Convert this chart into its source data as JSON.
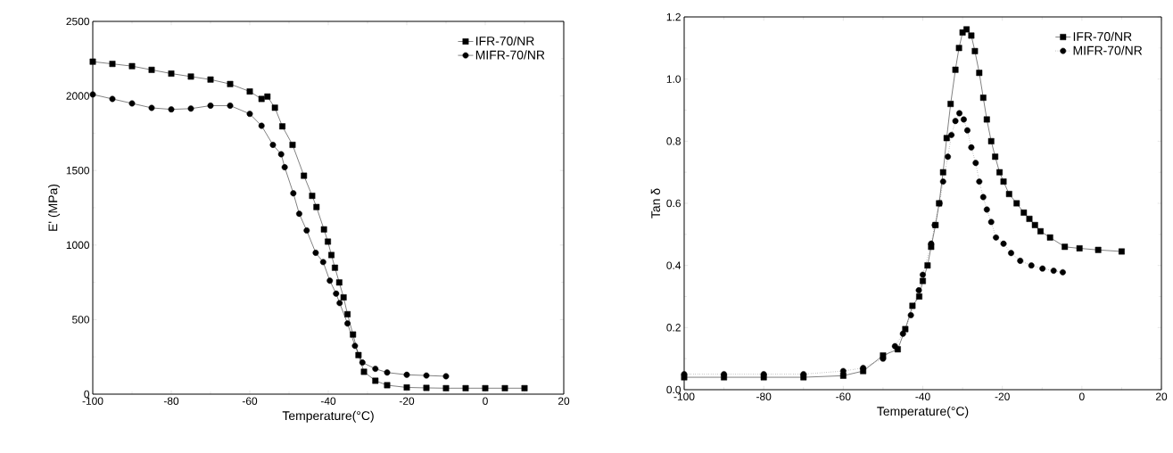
{
  "chart_data": [
    {
      "type": "line",
      "xlabel": "Temperature(°C)",
      "ylabel": "E' (MPa)",
      "xlim": [
        -100,
        20
      ],
      "ylim": [
        0,
        2500
      ],
      "xticks": [
        -100,
        -80,
        -60,
        -40,
        -20,
        0,
        20
      ],
      "yticks": [
        0,
        500,
        1000,
        1500,
        2000,
        2500
      ],
      "legend": "top right",
      "grid": false,
      "series": [
        {
          "name": "IFR-70/NR",
          "color": "#000000",
          "marker": "square",
          "line_style": "solid",
          "x": [
            -100,
            -95,
            -90,
            -85,
            -80,
            -75,
            -70,
            -65,
            -60,
            -57,
            -55.5,
            -53.6,
            -51.7,
            -49.1,
            -46.2,
            -44.1,
            -43,
            -41.1,
            -40.1,
            -39.2,
            -38.3,
            -37.2,
            -36.1,
            -35.1,
            -33.7,
            -32.3,
            -30.9,
            -28,
            -25,
            -20,
            -15,
            -10,
            -5,
            0,
            5,
            10
          ],
          "values": [
            2230,
            2215,
            2200,
            2175,
            2150,
            2130,
            2110,
            2080,
            2030,
            1980,
            1996,
            1921,
            1796,
            1672,
            1465,
            1330,
            1255,
            1105,
            1023,
            933,
            848,
            749,
            649,
            536,
            400,
            262,
            150,
            90,
            60,
            45,
            42,
            40,
            40,
            40,
            40,
            40
          ]
        },
        {
          "name": "MIFR-70/NR",
          "color": "#000000",
          "marker": "circle",
          "line_style": "solid",
          "x": [
            -100,
            -95,
            -90,
            -85,
            -80,
            -75,
            -70,
            -65,
            -60,
            -57,
            -54.1,
            -52,
            -51.1,
            -48.9,
            -47.4,
            -45.5,
            -43.2,
            -41.3,
            -39.6,
            -38,
            -37.1,
            -35.1,
            -33.2,
            -31.3,
            -28,
            -25,
            -20,
            -15,
            -10
          ],
          "values": [
            2010,
            1980,
            1950,
            1920,
            1910,
            1915,
            1935,
            1935,
            1880,
            1800,
            1672,
            1609,
            1522,
            1347,
            1210,
            1098,
            948,
            886,
            761,
            674,
            611,
            474,
            324,
            212,
            170,
            145,
            130,
            125,
            120
          ]
        }
      ]
    },
    {
      "type": "line",
      "xlabel": "Temperature(°C)",
      "ylabel": "Tan δ",
      "xlim": [
        -100,
        20
      ],
      "ylim": [
        0,
        1.2
      ],
      "xticks": [
        -100,
        -80,
        -60,
        -40,
        -20,
        0,
        20
      ],
      "yticks": [
        {
          "value": 0,
          "label": "0.0"
        },
        0.2,
        0.4,
        0.6,
        0.8,
        {
          "value": 1,
          "label": "1.0"
        },
        1.2
      ],
      "legend": "top right",
      "grid": false,
      "series": [
        {
          "name": "IFR-70/NR",
          "color": "#000000",
          "marker": "square",
          "line_style": "solid",
          "x": [
            -100,
            -90,
            -80,
            -70,
            -60,
            -55,
            -50,
            -46.3,
            -44.4,
            -42.6,
            -40.9,
            -40,
            -38.8,
            -37.9,
            -36.8,
            -35.9,
            -34.9,
            -34,
            -33,
            -31.8,
            -30.9,
            -30,
            -29,
            -27.8,
            -26.9,
            -25.8,
            -24.8,
            -23.9,
            -22.8,
            -21.8,
            -20.7,
            -19.7,
            -18.3,
            -16.4,
            -14.6,
            -13.2,
            -11.8,
            -10.4,
            -8,
            -4.3,
            -0.6,
            4.1,
            10
          ],
          "values": [
            0.04,
            0.04,
            0.04,
            0.04,
            0.045,
            0.06,
            0.11,
            0.13,
            0.195,
            0.27,
            0.3,
            0.35,
            0.4,
            0.46,
            0.53,
            0.6,
            0.7,
            0.81,
            0.92,
            1.03,
            1.1,
            1.15,
            1.16,
            1.14,
            1.09,
            1.02,
            0.94,
            0.87,
            0.8,
            0.75,
            0.7,
            0.67,
            0.63,
            0.6,
            0.57,
            0.55,
            0.53,
            0.51,
            0.49,
            0.46,
            0.455,
            0.45,
            0.445
          ]
        },
        {
          "name": "MIFR-70/NR",
          "color": "#000000",
          "marker": "circle",
          "line_style": "dotted",
          "x": [
            -100,
            -90,
            -80,
            -70,
            -60,
            -55,
            -50,
            -47,
            -45,
            -43,
            -41,
            -40,
            -37.9,
            -37,
            -35.8,
            -34.9,
            -33.7,
            -32.8,
            -31.8,
            -30.8,
            -29.7,
            -28.8,
            -27.8,
            -26.7,
            -25.8,
            -24.8,
            -23.9,
            -22.8,
            -21.6,
            -19.7,
            -17.8,
            -15.5,
            -12.7,
            -9.9,
            -7.1,
            -4.8
          ],
          "values": [
            0.05,
            0.05,
            0.05,
            0.05,
            0.06,
            0.07,
            0.1,
            0.14,
            0.18,
            0.24,
            0.32,
            0.37,
            0.47,
            0.53,
            0.6,
            0.67,
            0.75,
            0.82,
            0.865,
            0.89,
            0.87,
            0.835,
            0.78,
            0.73,
            0.67,
            0.62,
            0.58,
            0.54,
            0.49,
            0.47,
            0.44,
            0.415,
            0.4,
            0.39,
            0.383,
            0.378
          ]
        }
      ]
    }
  ]
}
